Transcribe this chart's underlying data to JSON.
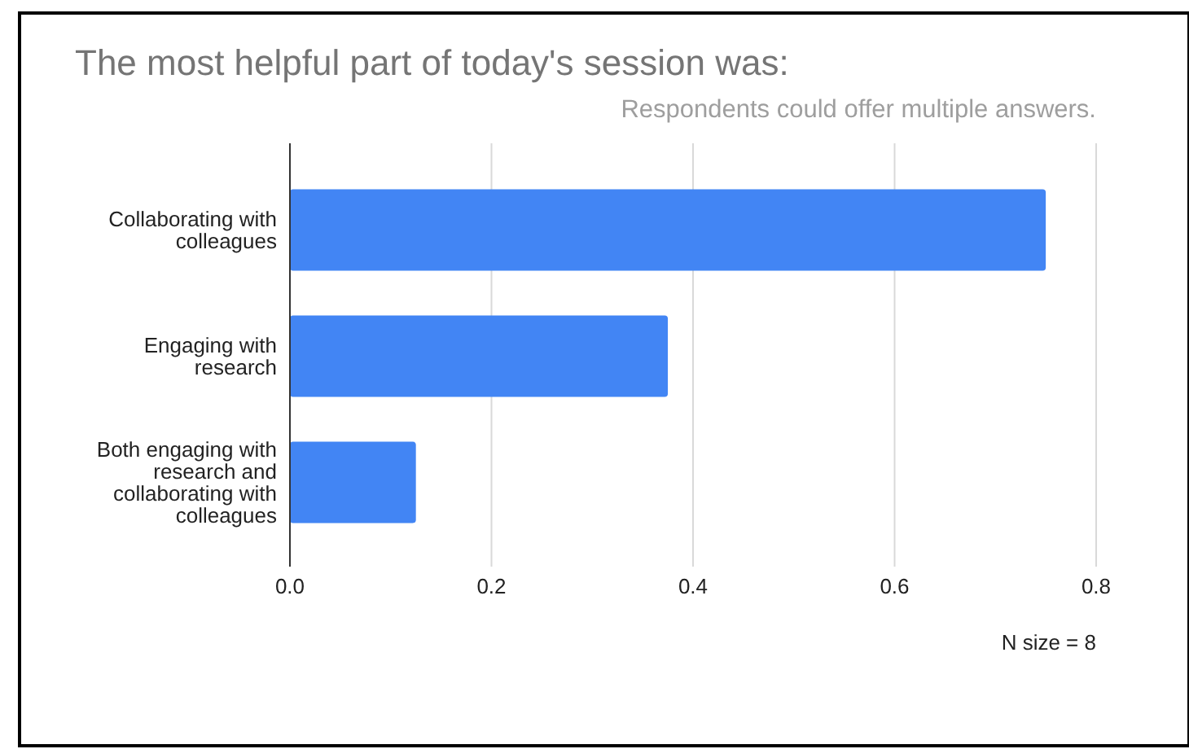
{
  "chart_data": {
    "type": "bar",
    "orientation": "horizontal",
    "title": "The most helpful part of today's session was:",
    "subtitle": "Respondents could offer multiple answers.",
    "annotations": [
      "N size = 8"
    ],
    "categories": [
      "Collaborating with colleagues",
      "Engaging with research",
      "Both engaging with research and collaborating with colleagues"
    ],
    "values": [
      0.75,
      0.375,
      0.125
    ],
    "color": "#4285f4",
    "xlim": [
      0,
      0.8
    ],
    "xticks": [
      {
        "value": 0,
        "label": "0.0"
      },
      0.2,
      0.4,
      0.6,
      0.8
    ],
    "grid": "x"
  }
}
